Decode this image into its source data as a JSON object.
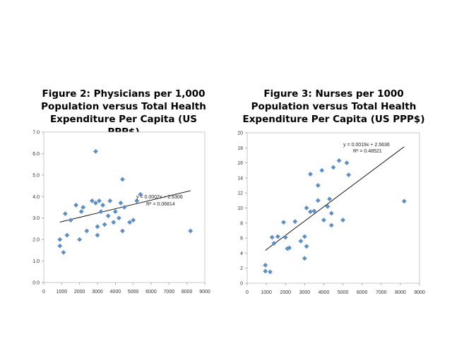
{
  "chart_data": [
    {
      "type": "scatter",
      "title_lines": [
        "Figure 2: Physicians per 1,000",
        "Population versus Total Health",
        "Expenditure Per Capita (US PPP$)"
      ],
      "xlabel": "",
      "ylabel": "",
      "xlim": [
        0,
        9000
      ],
      "ylim": [
        0,
        7
      ],
      "x_ticks": [
        0,
        1000,
        2000,
        3000,
        4000,
        5000,
        6000,
        7000,
        8000,
        9000
      ],
      "y_ticks": [
        "0.0",
        "1.0",
        "2.0",
        "3.0",
        "4.0",
        "5.0",
        "6.0",
        "7.0"
      ],
      "marker_color": "#5b8fc6",
      "trendline": {
        "slope": 0.0002,
        "intercept": 2.6306,
        "x_range": [
          900,
          8200
        ]
      },
      "equation": "y = 0.0002x + 2.6306",
      "r2": "R² = 0.06814",
      "points": [
        [
          900,
          1.7
        ],
        [
          900,
          2.0
        ],
        [
          1100,
          1.4
        ],
        [
          1200,
          3.2
        ],
        [
          1300,
          2.2
        ],
        [
          1500,
          2.9
        ],
        [
          1800,
          3.6
        ],
        [
          2000,
          2.0
        ],
        [
          2100,
          3.3
        ],
        [
          2200,
          3.5
        ],
        [
          2400,
          2.4
        ],
        [
          2700,
          3.8
        ],
        [
          2900,
          6.1
        ],
        [
          2900,
          3.7
        ],
        [
          3000,
          2.6
        ],
        [
          3000,
          2.2
        ],
        [
          3100,
          3.8
        ],
        [
          3200,
          3.3
        ],
        [
          3300,
          3.6
        ],
        [
          3400,
          2.7
        ],
        [
          3600,
          3.1
        ],
        [
          3700,
          3.8
        ],
        [
          3900,
          2.8
        ],
        [
          4000,
          3.3
        ],
        [
          4200,
          3.0
        ],
        [
          4300,
          3.7
        ],
        [
          4400,
          4.8
        ],
        [
          4400,
          2.4
        ],
        [
          4500,
          3.5
        ],
        [
          4800,
          2.8
        ],
        [
          5000,
          2.9
        ],
        [
          5200,
          3.8
        ],
        [
          5400,
          4.1
        ],
        [
          8200,
          2.4
        ]
      ]
    },
    {
      "type": "scatter",
      "title_lines": [
        "Figure 3: Nurses per 1000",
        "Population versus Total Health",
        "Expenditure Per Capita (US PPP$)"
      ],
      "xlabel": "",
      "ylabel": "",
      "xlim": [
        0,
        9000
      ],
      "ylim": [
        0,
        20
      ],
      "x_ticks": [
        0,
        1000,
        2000,
        3000,
        4000,
        5000,
        6000,
        7000,
        8000,
        9000
      ],
      "y_ticks": [
        "0",
        "2",
        "4",
        "6",
        "8",
        "10",
        "12",
        "14",
        "16",
        "18",
        "20"
      ],
      "marker_color": "#5b8fc6",
      "trendline": {
        "slope": 0.0019,
        "intercept": 2.5636,
        "x_range": [
          950,
          8200
        ]
      },
      "equation": "y = 0.0019x + 2.5636",
      "r2": "R² = 0.48521",
      "points": [
        [
          950,
          2.4
        ],
        [
          950,
          1.6
        ],
        [
          1200,
          1.5
        ],
        [
          1300,
          6.1
        ],
        [
          1400,
          5.3
        ],
        [
          1600,
          6.2
        ],
        [
          1900,
          8.1
        ],
        [
          2000,
          6.1
        ],
        [
          2100,
          4.6
        ],
        [
          2200,
          4.7
        ],
        [
          2500,
          8.2
        ],
        [
          2800,
          5.6
        ],
        [
          3000,
          3.3
        ],
        [
          3000,
          6.2
        ],
        [
          3100,
          10.0
        ],
        [
          3100,
          4.9
        ],
        [
          3300,
          9.5
        ],
        [
          3300,
          14.5
        ],
        [
          3500,
          9.6
        ],
        [
          3700,
          13.0
        ],
        [
          3700,
          11.0
        ],
        [
          3900,
          15.0
        ],
        [
          4000,
          8.4
        ],
        [
          4200,
          10.2
        ],
        [
          4300,
          11.2
        ],
        [
          4400,
          7.7
        ],
        [
          4400,
          9.3
        ],
        [
          4500,
          15.4
        ],
        [
          4800,
          16.3
        ],
        [
          5000,
          8.4
        ],
        [
          5200,
          16.0
        ],
        [
          5300,
          14.4
        ],
        [
          8200,
          10.9
        ]
      ]
    }
  ]
}
